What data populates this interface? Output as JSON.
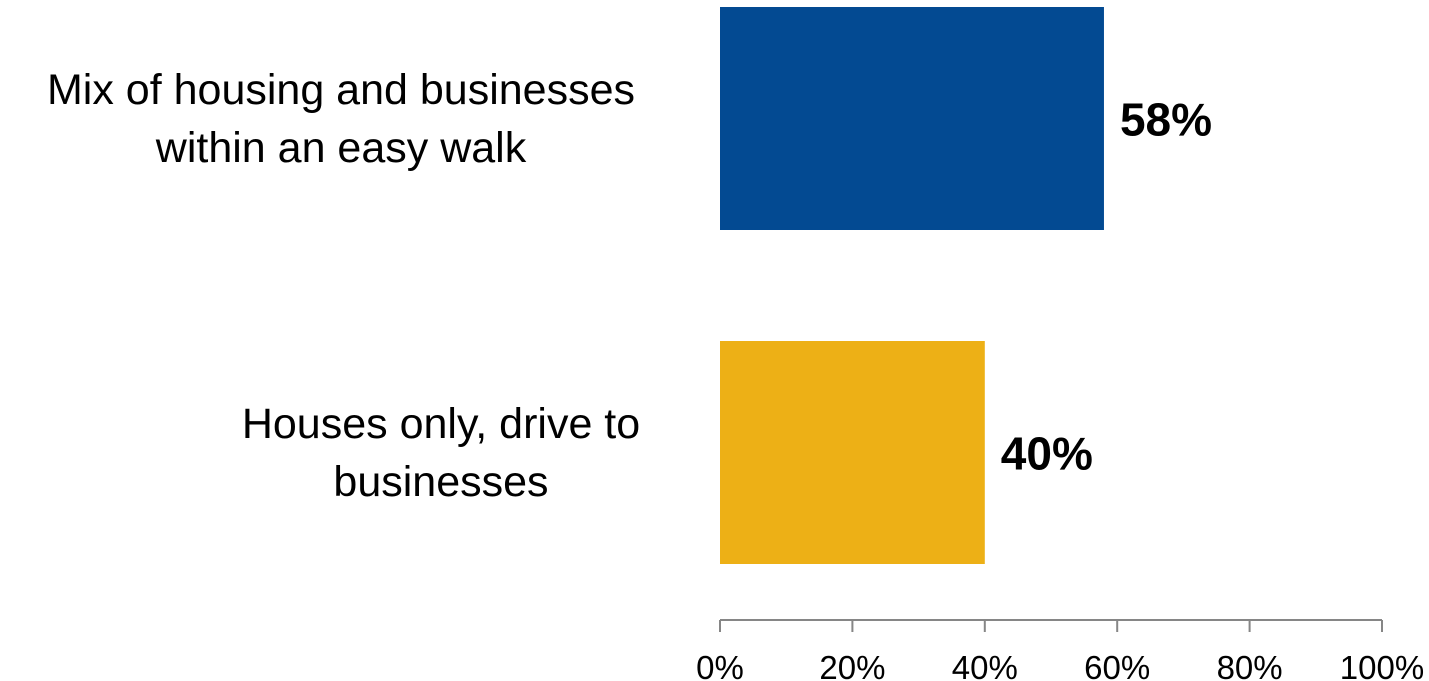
{
  "chart_data": {
    "type": "bar",
    "orientation": "horizontal",
    "categories": [
      [
        "Mix of housing and businesses",
        "within an easy walk"
      ],
      [
        "Houses only, drive to",
        "businesses"
      ]
    ],
    "values": [
      58,
      40
    ],
    "data_labels": [
      "58%",
      "40%"
    ],
    "bar_colors": [
      "#034A92",
      "#EDB016"
    ],
    "xlim": [
      0,
      100
    ],
    "x_ticks": [
      0,
      20,
      40,
      60,
      80,
      100
    ],
    "x_tick_labels": [
      "0%",
      "20%",
      "40%",
      "60%",
      "80%",
      "100%"
    ],
    "grid": false,
    "legend": "none"
  }
}
